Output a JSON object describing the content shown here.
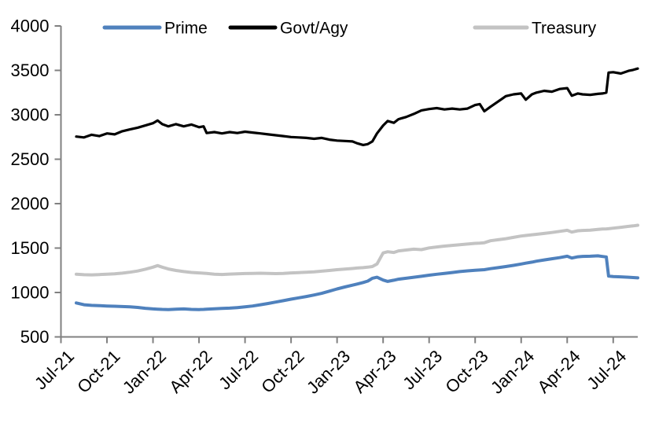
{
  "chart_data": {
    "type": "line",
    "title": "",
    "xlabel": "",
    "ylabel": "",
    "grid": false,
    "legend_position": "top",
    "axis_color": "#808080",
    "text_color": "#000000",
    "ylim": [
      500,
      4000
    ],
    "xlim": [
      0,
      37.6
    ],
    "y_ticks": [
      500,
      1000,
      1500,
      2000,
      2500,
      3000,
      3500,
      4000
    ],
    "x_ticks": [
      {
        "pos": 0,
        "label": "Jul-21"
      },
      {
        "pos": 3,
        "label": "Oct-21"
      },
      {
        "pos": 6,
        "label": "Jan-22"
      },
      {
        "pos": 9,
        "label": "Apr-22"
      },
      {
        "pos": 12,
        "label": "Jul-22"
      },
      {
        "pos": 15,
        "label": "Oct-22"
      },
      {
        "pos": 18,
        "label": "Jan-23"
      },
      {
        "pos": 21,
        "label": "Apr-23"
      },
      {
        "pos": 24,
        "label": "Jul-23"
      },
      {
        "pos": 27,
        "label": "Oct-23"
      },
      {
        "pos": 30,
        "label": "Jan-24"
      },
      {
        "pos": 33,
        "label": "Apr-24"
      },
      {
        "pos": 36,
        "label": "Jul-24"
      }
    ],
    "x_unit": "months since Jul-2021 tick",
    "x": [
      1,
      1.5,
      2,
      2.5,
      3,
      3.5,
      4,
      4.5,
      5,
      5.5,
      6,
      6.3,
      6.6,
      7,
      7.5,
      8,
      8.5,
      9,
      9.3,
      9.5,
      10,
      10.5,
      11,
      11.5,
      12,
      12.5,
      13,
      13.5,
      14,
      14.5,
      15,
      15.5,
      16,
      16.5,
      17,
      17.5,
      18,
      18.5,
      19,
      19.3,
      19.7,
      20,
      20.3,
      20.6,
      21,
      21.3,
      21.7,
      22,
      22.5,
      23,
      23.5,
      24,
      24.5,
      25,
      25.5,
      26,
      26.5,
      27,
      27.3,
      27.6,
      28,
      28.5,
      29,
      29.5,
      30,
      30.3,
      30.7,
      31,
      31.5,
      32,
      32.5,
      33,
      33.3,
      33.7,
      34,
      34.5,
      35,
      35.3,
      35.55,
      35.7,
      36,
      36.5,
      37,
      37.3,
      37.6
    ],
    "series": [
      {
        "name": "Prime",
        "color": "#4f81bd",
        "line_width": 4,
        "values": [
          882,
          862,
          855,
          852,
          848,
          845,
          842,
          838,
          832,
          822,
          815,
          812,
          810,
          808,
          812,
          815,
          810,
          808,
          810,
          812,
          816,
          820,
          824,
          830,
          838,
          848,
          862,
          876,
          892,
          908,
          925,
          940,
          955,
          972,
          990,
          1015,
          1040,
          1062,
          1082,
          1095,
          1112,
          1128,
          1160,
          1172,
          1140,
          1125,
          1138,
          1150,
          1160,
          1172,
          1182,
          1195,
          1205,
          1215,
          1225,
          1235,
          1243,
          1250,
          1253,
          1257,
          1268,
          1280,
          1292,
          1305,
          1320,
          1330,
          1342,
          1352,
          1366,
          1380,
          1392,
          1408,
          1388,
          1402,
          1406,
          1408,
          1412,
          1405,
          1400,
          1185,
          1180,
          1176,
          1172,
          1168,
          1165
        ]
      },
      {
        "name": "Govt/Agy",
        "color": "#000000",
        "line_width": 3.2,
        "values": [
          2755,
          2745,
          2775,
          2760,
          2790,
          2780,
          2815,
          2835,
          2855,
          2880,
          2905,
          2935,
          2895,
          2870,
          2895,
          2870,
          2890,
          2860,
          2870,
          2795,
          2805,
          2790,
          2805,
          2795,
          2810,
          2800,
          2790,
          2780,
          2770,
          2760,
          2750,
          2745,
          2740,
          2730,
          2740,
          2720,
          2710,
          2705,
          2700,
          2680,
          2660,
          2670,
          2700,
          2790,
          2880,
          2930,
          2910,
          2950,
          2975,
          3010,
          3050,
          3065,
          3075,
          3060,
          3070,
          3060,
          3070,
          3110,
          3120,
          3040,
          3090,
          3150,
          3210,
          3230,
          3240,
          3170,
          3230,
          3250,
          3270,
          3260,
          3290,
          3300,
          3215,
          3240,
          3230,
          3225,
          3235,
          3240,
          3250,
          3475,
          3480,
          3465,
          3495,
          3505,
          3520
        ]
      },
      {
        "name": "Treasury",
        "color": "#c3c3c3",
        "line_width": 4,
        "values": [
          1205,
          1200,
          1198,
          1202,
          1205,
          1210,
          1218,
          1228,
          1242,
          1262,
          1285,
          1303,
          1285,
          1265,
          1248,
          1235,
          1226,
          1220,
          1217,
          1214,
          1206,
          1203,
          1207,
          1210,
          1213,
          1215,
          1217,
          1214,
          1212,
          1215,
          1220,
          1224,
          1227,
          1232,
          1240,
          1248,
          1257,
          1263,
          1270,
          1275,
          1280,
          1285,
          1292,
          1320,
          1445,
          1458,
          1450,
          1468,
          1478,
          1488,
          1482,
          1502,
          1512,
          1522,
          1530,
          1538,
          1545,
          1553,
          1556,
          1560,
          1582,
          1594,
          1605,
          1620,
          1635,
          1642,
          1650,
          1655,
          1665,
          1675,
          1688,
          1700,
          1680,
          1695,
          1698,
          1702,
          1710,
          1714,
          1716,
          1718,
          1724,
          1734,
          1744,
          1750,
          1757
        ]
      }
    ],
    "legend": [
      {
        "label": "Prime",
        "color": "#4f81bd"
      },
      {
        "label": "Govt/Agy",
        "color": "#000000"
      },
      {
        "label": "Treasury",
        "color": "#c3c3c3"
      }
    ]
  }
}
